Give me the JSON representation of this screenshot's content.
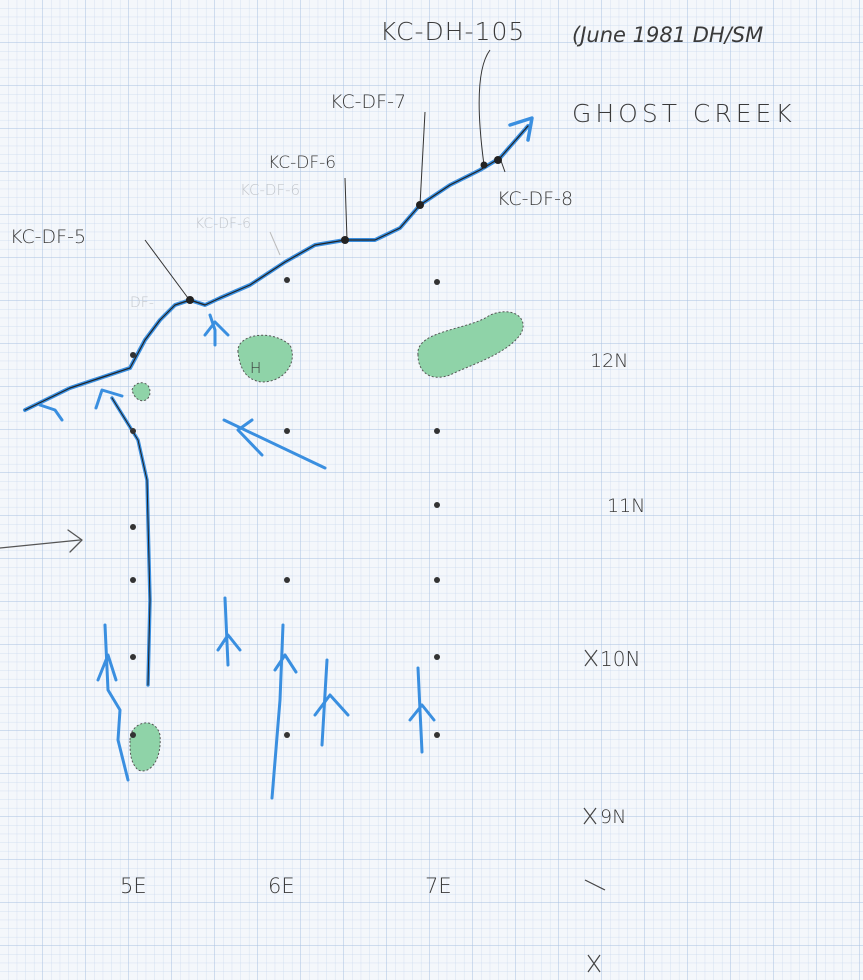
{
  "labels": {
    "drill_hole": "KC-DH-105",
    "note": "(June 1981 DH/SM",
    "creek": "GHOST CREEK",
    "df7": "KC-DF-7",
    "df6": "KC-DF-6",
    "df6_faded_upper": "KC-DF-6",
    "df6_faded_lower": "KC-DF-6",
    "df5": "KC-DF-5",
    "df8": "KC-DF-8",
    "df_faded": "DF-",
    "pond": "H",
    "row_12n": "12N",
    "row_11n": "11N",
    "row_10n": "10N",
    "row_9n": "9N",
    "col_5e": "5E",
    "col_6e": "6E",
    "col_7e": "7E"
  }
}
